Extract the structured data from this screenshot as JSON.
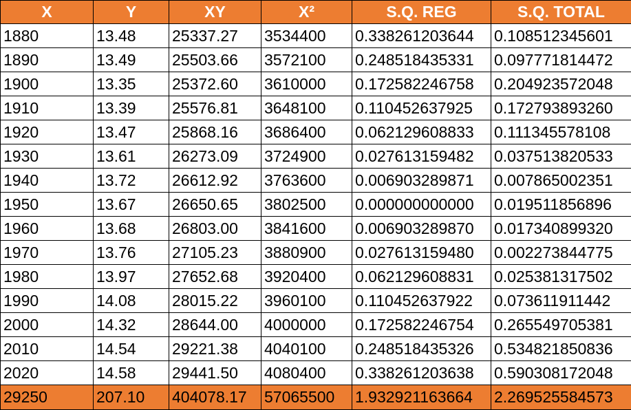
{
  "table": {
    "headers": [
      "X",
      "Y",
      "XY",
      "X²",
      "S.Q. REG",
      "S.Q. TOTAL"
    ],
    "rows": [
      [
        "1880",
        "13.48",
        "25337.27",
        "3534400",
        "0.338261203644",
        "0.108512345601"
      ],
      [
        "1890",
        "13.49",
        "25503.66",
        "3572100",
        "0.248518435331",
        "0.097771814472"
      ],
      [
        "1900",
        "13.35",
        "25372.60",
        "3610000",
        "0.172582246758",
        "0.204923572048"
      ],
      [
        "1910",
        "13.39",
        "25576.81",
        "3648100",
        "0.110452637925",
        "0.172793893260"
      ],
      [
        "1920",
        "13.47",
        "25868.16",
        "3686400",
        "0.062129608833",
        "0.111345578108"
      ],
      [
        "1930",
        "13.61",
        "26273.09",
        "3724900",
        "0.027613159482",
        "0.037513820533"
      ],
      [
        "1940",
        "13.72",
        "26612.92",
        "3763600",
        "0.006903289871",
        "0.007865002351"
      ],
      [
        "1950",
        "13.67",
        "26650.65",
        "3802500",
        "0.000000000000",
        "0.019511856896"
      ],
      [
        "1960",
        "13.68",
        "26803.00",
        "3841600",
        "0.006903289870",
        "0.017340899320"
      ],
      [
        "1970",
        "13.76",
        "27105.23",
        "3880900",
        "0.027613159480",
        "0.002273844775"
      ],
      [
        "1980",
        "13.97",
        "27652.68",
        "3920400",
        "0.062129608831",
        "0.025381317502"
      ],
      [
        "1990",
        "14.08",
        "28015.22",
        "3960100",
        "0.110452637922",
        "0.073611911442"
      ],
      [
        "2000",
        "14.32",
        "28644.00",
        "4000000",
        "0.172582246754",
        "0.265549705381"
      ],
      [
        "2010",
        "14.54",
        "29221.38",
        "4040100",
        "0.248518435326",
        "0.534821850836"
      ],
      [
        "2020",
        "14.58",
        "29441.50",
        "4080400",
        "0.338261203638",
        "0.590308172048"
      ]
    ],
    "totals": [
      "29250",
      "207.10",
      "404078.17",
      "57065500",
      "1.932921163664",
      "2.269525584573"
    ]
  },
  "colors": {
    "header_bg": "#ED7D31",
    "header_text": "#FFFFFF",
    "totals_bg": "#ED7D31",
    "grid": "#000000"
  }
}
